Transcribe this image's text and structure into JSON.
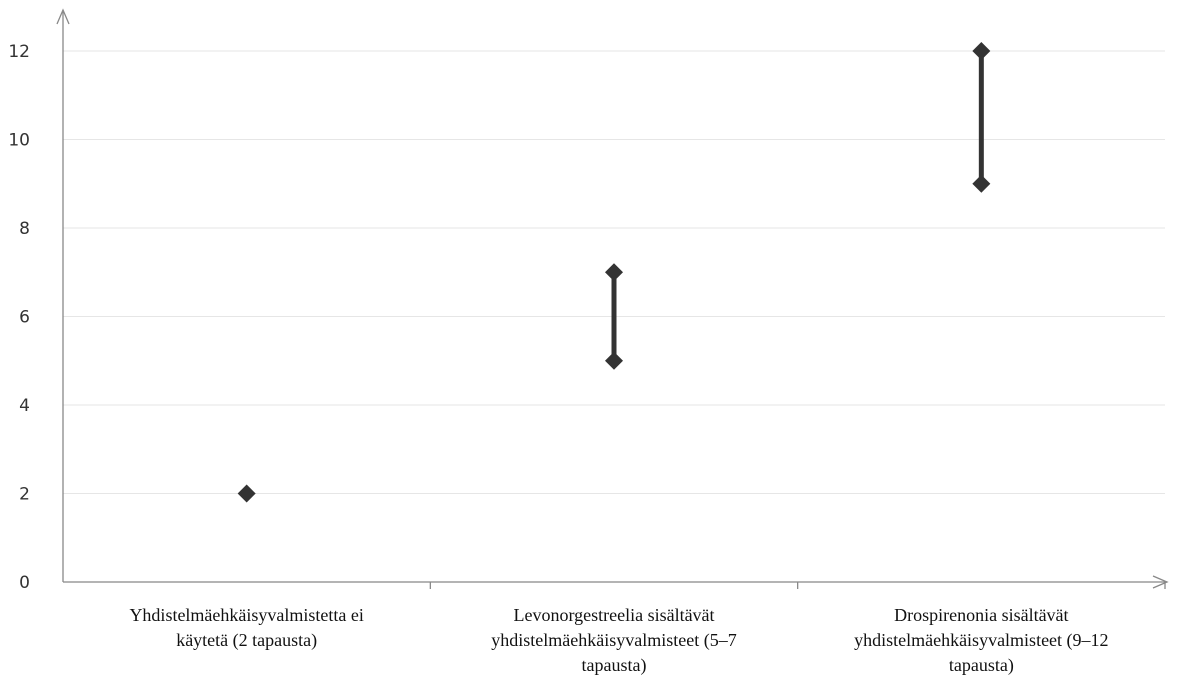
{
  "chart_data": {
    "type": "scatter",
    "title": "",
    "xlabel": "",
    "ylabel": "",
    "ylim": [
      0,
      12
    ],
    "yticks": [
      "0",
      "2",
      "4",
      "6",
      "8",
      "10",
      "12"
    ],
    "grid": true,
    "colors": {
      "marker": "#333333",
      "grid": "#e6e6e6",
      "axis": "#888888"
    },
    "categories": [
      {
        "label_lines": [
          "Yhdistelmäehkäisyvalmistetta ei",
          "käytetä (2 tapausta)"
        ],
        "low": 2,
        "high": 2
      },
      {
        "label_lines": [
          "Levonorgestreelia sisältävät",
          "yhdistelmäehkäisyvalmisteet (5–7",
          "tapausta)"
        ],
        "low": 5,
        "high": 7
      },
      {
        "label_lines": [
          "Drospirenonia sisältävät",
          "yhdistelmäehkäisyvalmisteet (9–12",
          "tapausta)"
        ],
        "low": 9,
        "high": 12
      }
    ]
  }
}
